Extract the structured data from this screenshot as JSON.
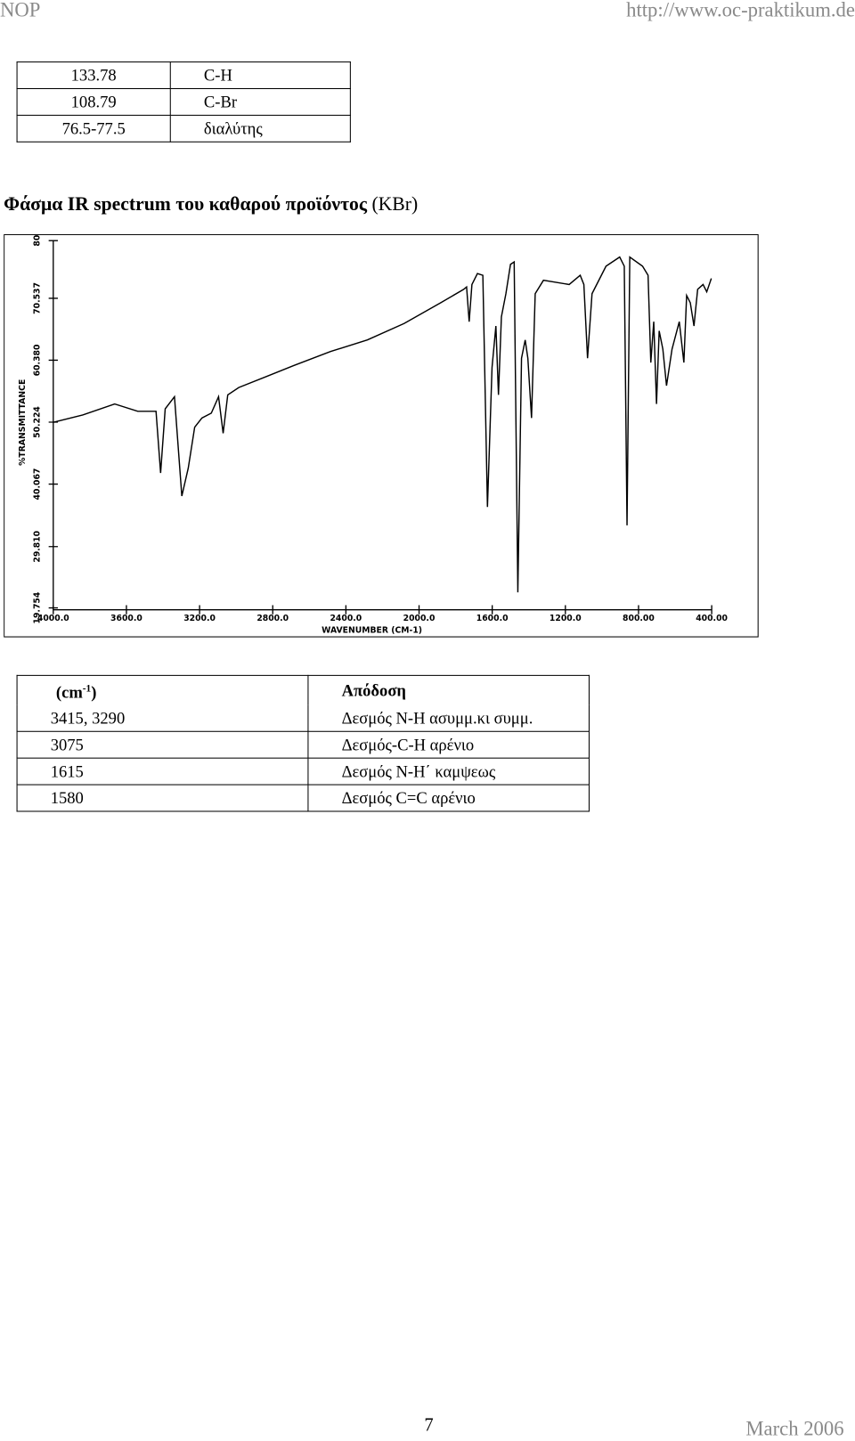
{
  "header": {
    "left": "NOP",
    "right": "http://www.oc-praktikum.de"
  },
  "nmr_table": {
    "rows": [
      [
        "133.78",
        "C-H"
      ],
      [
        "108.79",
        "C-Br"
      ],
      [
        "76.5-77.5",
        "διαλύτης"
      ]
    ]
  },
  "heading": {
    "title": "Φάσμα IR spectrum του καθαρού προϊόντος",
    "suffix": "(KBr)"
  },
  "chart_data": {
    "type": "line",
    "x_label": "WAVENUMBER (CM-1)",
    "y_label": "%TRANSMITTANCE",
    "xlim": [
      4000,
      400
    ],
    "ylim": [
      19.754,
      80
    ],
    "xticks": [
      {
        "value": 4000,
        "label": "4000.0"
      },
      {
        "value": 3600,
        "label": "3600.0"
      },
      {
        "value": 3200,
        "label": "3200.0"
      },
      {
        "value": 2800,
        "label": "2800.0"
      },
      {
        "value": 2400,
        "label": "2400.0"
      },
      {
        "value": 2000,
        "label": "2000.0"
      },
      {
        "value": 1600,
        "label": "1600.0"
      },
      {
        "value": 1200,
        "label": "1200.0"
      },
      {
        "value": 800,
        "label": "800.00"
      },
      {
        "value": 400,
        "label": "400.00"
      }
    ],
    "yticks": [
      19.754,
      {
        "value": 29.81,
        "label": "29.810"
      },
      40.067,
      50.224,
      {
        "value": 60.38,
        "label": "60.380"
      },
      70.537,
      80
    ],
    "color": "#000000",
    "x": [
      4000,
      3839,
      3664,
      3538,
      3438,
      3413,
      3388,
      3337,
      3297,
      3262,
      3227,
      3187,
      3136,
      3096,
      3071,
      3046,
      2986,
      2835,
      2685,
      2484,
      2283,
      2082,
      1882,
      1756,
      1740,
      1726,
      1711,
      1681,
      1651,
      1626,
      1601,
      1580,
      1566,
      1550,
      1525,
      1500,
      1480,
      1460,
      1440,
      1420,
      1405,
      1385,
      1365,
      1320,
      1179,
      1119,
      1099,
      1079,
      1054,
      978,
      903,
      878,
      863,
      848,
      778,
      748,
      733,
      717,
      702,
      687,
      667,
      647,
      617,
      577,
      552,
      537,
      517,
      497,
      477,
      447,
      427,
      402
    ],
    "values": [
      50.2,
      51.4,
      53.2,
      52.0,
      52.0,
      41.9,
      52.4,
      54.4,
      38.1,
      42.7,
      49.4,
      50.9,
      51.7,
      54.4,
      48.4,
      54.7,
      55.9,
      57.7,
      59.5,
      61.8,
      63.7,
      66.4,
      69.8,
      72.0,
      72.4,
      66.7,
      72.8,
      74.6,
      74.3,
      36.3,
      59.2,
      66.0,
      54.7,
      67.5,
      71.3,
      76.1,
      76.5,
      22.3,
      60.7,
      63.7,
      60.7,
      50.9,
      71.3,
      73.5,
      72.8,
      74.3,
      72.8,
      60.7,
      71.3,
      75.8,
      77.3,
      75.8,
      33.3,
      77.3,
      75.8,
      74.3,
      60.0,
      66.7,
      53.2,
      65.2,
      62.2,
      56.2,
      62.2,
      66.7,
      60.0,
      71.0,
      69.8,
      66.0,
      72.0,
      72.8,
      71.6,
      73.8
    ]
  },
  "ir_table": {
    "unit_open": "(cm",
    "unit_exp": "-1",
    "unit_close": ")",
    "assign_header": "Απόδοση",
    "rows": [
      [
        "3415, 3290",
        "Δεσμός N-H ασυμμ.κι συμμ."
      ],
      [
        "3075",
        "Δεσμός-C-H  αρένιο"
      ],
      [
        "1615",
        "Δεσμός N-H΄ καμψεως"
      ],
      [
        "1580",
        "Δεσμός C=C  αρένιο"
      ]
    ]
  },
  "footer": {
    "page": "7",
    "date": "March 2006"
  }
}
